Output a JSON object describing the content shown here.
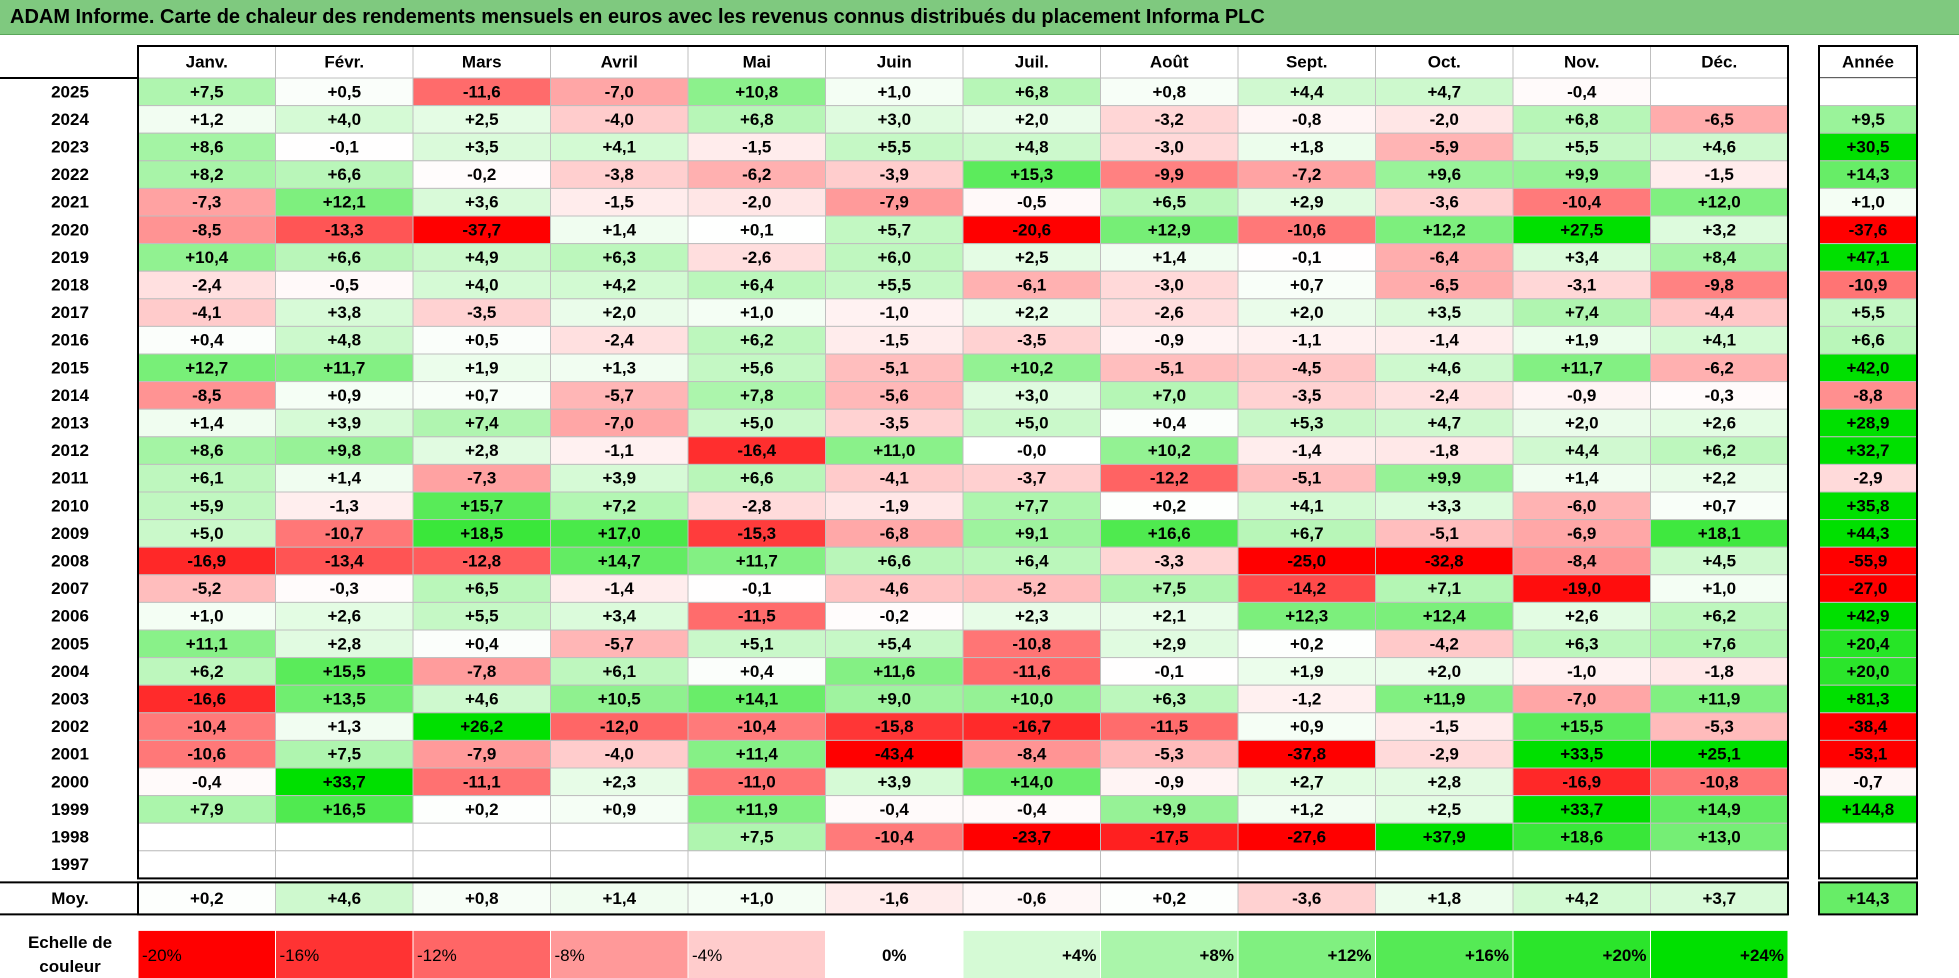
{
  "title": "ADAM Informe. Carte de chaleur des rendements mensuels en euros avec les revenus connus distribués du placement Informa PLC",
  "chart_data": {
    "type": "heatmap",
    "title": "ADAM Informe. Carte de chaleur des rendements mensuels en euros avec les revenus connus distribués du placement Informa PLC",
    "columns": [
      "Janv.",
      "Févr.",
      "Mars",
      "Avril",
      "Mai",
      "Juin",
      "Juil.",
      "Août",
      "Sept.",
      "Oct.",
      "Nov.",
      "Déc."
    ],
    "year_column_label": "Année",
    "rows": [
      {
        "year": "2025",
        "months": [
          "+7,5",
          "+0,5",
          "-11,6",
          "-7,0",
          "+10,8",
          "+1,0",
          "+6,8",
          "+0,8",
          "+4,4",
          "+4,7",
          "-0,4",
          ""
        ],
        "annual": ""
      },
      {
        "year": "2024",
        "months": [
          "+1,2",
          "+4,0",
          "+2,5",
          "-4,0",
          "+6,8",
          "+3,0",
          "+2,0",
          "-3,2",
          "-0,8",
          "-2,0",
          "+6,8",
          "-6,5"
        ],
        "annual": "+9,5"
      },
      {
        "year": "2023",
        "months": [
          "+8,6",
          "-0,1",
          "+3,5",
          "+4,1",
          "-1,5",
          "+5,5",
          "+4,8",
          "-3,0",
          "+1,8",
          "-5,9",
          "+5,5",
          "+4,6"
        ],
        "annual": "+30,5"
      },
      {
        "year": "2022",
        "months": [
          "+8,2",
          "+6,6",
          "-0,2",
          "-3,8",
          "-6,2",
          "-3,9",
          "+15,3",
          "-9,9",
          "-7,2",
          "+9,6",
          "+9,9",
          "-1,5"
        ],
        "annual": "+14,3"
      },
      {
        "year": "2021",
        "months": [
          "-7,3",
          "+12,1",
          "+3,6",
          "-1,5",
          "-2,0",
          "-7,9",
          "-0,5",
          "+6,5",
          "+2,9",
          "-3,6",
          "-10,4",
          "+12,0"
        ],
        "annual": "+1,0"
      },
      {
        "year": "2020",
        "months": [
          "-8,5",
          "-13,3",
          "-37,7",
          "+1,4",
          "+0,1",
          "+5,7",
          "-20,6",
          "+12,9",
          "-10,6",
          "+12,2",
          "+27,5",
          "+3,2"
        ],
        "annual": "-37,6"
      },
      {
        "year": "2019",
        "months": [
          "+10,4",
          "+6,6",
          "+4,9",
          "+6,3",
          "-2,6",
          "+6,0",
          "+2,5",
          "+1,4",
          "-0,1",
          "-6,4",
          "+3,4",
          "+8,4"
        ],
        "annual": "+47,1"
      },
      {
        "year": "2018",
        "months": [
          "-2,4",
          "-0,5",
          "+4,0",
          "+4,2",
          "+6,4",
          "+5,5",
          "-6,1",
          "-3,0",
          "+0,7",
          "-6,5",
          "-3,1",
          "-9,8"
        ],
        "annual": "-10,9"
      },
      {
        "year": "2017",
        "months": [
          "-4,1",
          "+3,8",
          "-3,5",
          "+2,0",
          "+1,0",
          "-1,0",
          "+2,2",
          "-2,6",
          "+2,0",
          "+3,5",
          "+7,4",
          "-4,4"
        ],
        "annual": "+5,5"
      },
      {
        "year": "2016",
        "months": [
          "+0,4",
          "+4,8",
          "+0,5",
          "-2,4",
          "+6,2",
          "-1,5",
          "-3,5",
          "-0,9",
          "-1,1",
          "-1,4",
          "+1,9",
          "+4,1"
        ],
        "annual": "+6,6"
      },
      {
        "year": "2015",
        "months": [
          "+12,7",
          "+11,7",
          "+1,9",
          "+1,3",
          "+5,6",
          "-5,1",
          "+10,2",
          "-5,1",
          "-4,5",
          "+4,6",
          "+11,7",
          "-6,2"
        ],
        "annual": "+42,0"
      },
      {
        "year": "2014",
        "months": [
          "-8,5",
          "+0,9",
          "+0,7",
          "-5,7",
          "+7,8",
          "-5,6",
          "+3,0",
          "+7,0",
          "-3,5",
          "-2,4",
          "-0,9",
          "-0,3"
        ],
        "annual": "-8,8"
      },
      {
        "year": "2013",
        "months": [
          "+1,4",
          "+3,9",
          "+7,4",
          "-7,0",
          "+5,0",
          "-3,5",
          "+5,0",
          "+0,4",
          "+5,3",
          "+4,7",
          "+2,0",
          "+2,6"
        ],
        "annual": "+28,9"
      },
      {
        "year": "2012",
        "months": [
          "+8,6",
          "+9,8",
          "+2,8",
          "-1,1",
          "-16,4",
          "+11,0",
          "-0,0",
          "+10,2",
          "-1,4",
          "-1,8",
          "+4,4",
          "+6,2"
        ],
        "annual": "+32,7"
      },
      {
        "year": "2011",
        "months": [
          "+6,1",
          "+1,4",
          "-7,3",
          "+3,9",
          "+6,6",
          "-4,1",
          "-3,7",
          "-12,2",
          "-5,1",
          "+9,9",
          "+1,4",
          "+2,2"
        ],
        "annual": "-2,9"
      },
      {
        "year": "2010",
        "months": [
          "+5,9",
          "-1,3",
          "+15,7",
          "+7,2",
          "-2,8",
          "-1,9",
          "+7,7",
          "+0,2",
          "+4,1",
          "+3,3",
          "-6,0",
          "+0,7"
        ],
        "annual": "+35,8"
      },
      {
        "year": "2009",
        "months": [
          "+5,0",
          "-10,7",
          "+18,5",
          "+17,0",
          "-15,3",
          "-6,8",
          "+9,1",
          "+16,6",
          "+6,7",
          "-5,1",
          "-6,9",
          "+18,1"
        ],
        "annual": "+44,3"
      },
      {
        "year": "2008",
        "months": [
          "-16,9",
          "-13,4",
          "-12,8",
          "+14,7",
          "+11,7",
          "+6,6",
          "+6,4",
          "-3,3",
          "-25,0",
          "-32,8",
          "-8,4",
          "+4,5"
        ],
        "annual": "-55,9"
      },
      {
        "year": "2007",
        "months": [
          "-5,2",
          "-0,3",
          "+6,5",
          "-1,4",
          "-0,1",
          "-4,6",
          "-5,2",
          "+7,5",
          "-14,2",
          "+7,1",
          "-19,0",
          "+1,0"
        ],
        "annual": "-27,0"
      },
      {
        "year": "2006",
        "months": [
          "+1,0",
          "+2,6",
          "+5,5",
          "+3,4",
          "-11,5",
          "-0,2",
          "+2,3",
          "+2,1",
          "+12,3",
          "+12,4",
          "+2,6",
          "+6,2"
        ],
        "annual": "+42,9"
      },
      {
        "year": "2005",
        "months": [
          "+11,1",
          "+2,8",
          "+0,4",
          "-5,7",
          "+5,1",
          "+5,4",
          "-10,8",
          "+2,9",
          "+0,2",
          "-4,2",
          "+6,3",
          "+7,6"
        ],
        "annual": "+20,4"
      },
      {
        "year": "2004",
        "months": [
          "+6,2",
          "+15,5",
          "-7,8",
          "+6,1",
          "+0,4",
          "+11,6",
          "-11,6",
          "-0,1",
          "+1,9",
          "+2,0",
          "-1,0",
          "-1,8"
        ],
        "annual": "+20,0"
      },
      {
        "year": "2003",
        "months": [
          "-16,6",
          "+13,5",
          "+4,6",
          "+10,5",
          "+14,1",
          "+9,0",
          "+10,0",
          "+6,3",
          "-1,2",
          "+11,9",
          "-7,0",
          "+11,9"
        ],
        "annual": "+81,3"
      },
      {
        "year": "2002",
        "months": [
          "-10,4",
          "+1,3",
          "+26,2",
          "-12,0",
          "-10,4",
          "-15,8",
          "-16,7",
          "-11,5",
          "+0,9",
          "-1,5",
          "+15,5",
          "-5,3"
        ],
        "annual": "-38,4"
      },
      {
        "year": "2001",
        "months": [
          "-10,6",
          "+7,5",
          "-7,9",
          "-4,0",
          "+11,4",
          "-43,4",
          "-8,4",
          "-5,3",
          "-37,8",
          "-2,9",
          "+33,5",
          "+25,1"
        ],
        "annual": "-53,1"
      },
      {
        "year": "2000",
        "months": [
          "-0,4",
          "+33,7",
          "-11,1",
          "+2,3",
          "-11,0",
          "+3,9",
          "+14,0",
          "-0,9",
          "+2,7",
          "+2,8",
          "-16,9",
          "-10,8"
        ],
        "annual": "-0,7"
      },
      {
        "year": "1999",
        "months": [
          "+7,9",
          "+16,5",
          "+0,2",
          "+0,9",
          "+11,9",
          "-0,4",
          "-0,4",
          "+9,9",
          "+1,2",
          "+2,5",
          "+33,7",
          "+14,9"
        ],
        "annual": "+144,8"
      },
      {
        "year": "1998",
        "months": [
          "",
          "",
          "",
          "",
          "+7,5",
          "-10,4",
          "-23,7",
          "-17,5",
          "-27,6",
          "+37,9",
          "+18,6",
          "+13,0"
        ],
        "annual": ""
      },
      {
        "year": "1997",
        "months": [
          "",
          "",
          "",
          "",
          "",
          "",
          "",
          "",
          "",
          "",
          "",
          ""
        ],
        "annual": ""
      }
    ],
    "average": {
      "label": "Moy.",
      "months": [
        "+0,2",
        "+4,6",
        "+0,8",
        "+1,4",
        "+1,0",
        "-1,6",
        "-0,6",
        "+0,2",
        "-3,6",
        "+1,8",
        "+4,2",
        "+3,7"
      ],
      "annual": "+14,3"
    },
    "scale": {
      "label": "Echelle de couleur",
      "steps": [
        "-20%",
        "-16%",
        "-12%",
        "-8%",
        "-4%",
        "0%",
        "+4%",
        "+8%",
        "+12%",
        "+16%",
        "+20%",
        "+24%"
      ],
      "step_values": [
        -20,
        -16,
        -12,
        -8,
        -4,
        0,
        4,
        8,
        12,
        16,
        20,
        24
      ]
    },
    "colors": {
      "negative_max": "#ff0000",
      "positive_max": "#00e000",
      "neutral": "#ffffff",
      "title_bar": "#7fc97f"
    }
  }
}
